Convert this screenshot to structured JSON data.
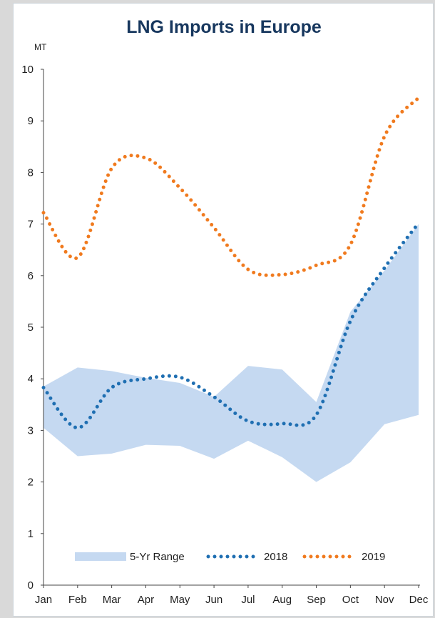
{
  "chart_data": {
    "type": "line",
    "title": "LNG Imports in Europe",
    "ylabel": "MT",
    "xlabel": "",
    "categories": [
      "Jan",
      "Feb",
      "Mar",
      "Apr",
      "May",
      "Jun",
      "Jul",
      "Aug",
      "Sep",
      "Oct",
      "Nov",
      "Dec"
    ],
    "ylim": [
      0,
      10
    ],
    "yticks": [
      0,
      1,
      2,
      3,
      4,
      5,
      6,
      7,
      8,
      9,
      10
    ],
    "grid": false,
    "legend_position": "bottom",
    "range": {
      "name": "5-Yr Range",
      "color": "#c5d9f1",
      "low": [
        3.05,
        2.5,
        2.55,
        2.72,
        2.7,
        2.45,
        2.8,
        2.48,
        2.0,
        2.38,
        3.12,
        3.3
      ],
      "high": [
        3.85,
        4.22,
        4.15,
        4.02,
        3.92,
        3.65,
        4.25,
        4.18,
        3.55,
        5.3,
        6.1,
        7.0
      ]
    },
    "series": [
      {
        "name": "2018",
        "color": "#1f6fb2",
        "values": [
          3.83,
          3.05,
          3.83,
          4.0,
          4.03,
          3.65,
          3.18,
          3.13,
          3.3,
          5.12,
          6.15,
          7.02
        ]
      },
      {
        "name": "2019",
        "color": "#f07a1e",
        "values": [
          7.22,
          6.35,
          8.08,
          8.28,
          7.7,
          6.93,
          6.12,
          6.02,
          6.2,
          6.6,
          8.7,
          9.45
        ]
      }
    ]
  }
}
